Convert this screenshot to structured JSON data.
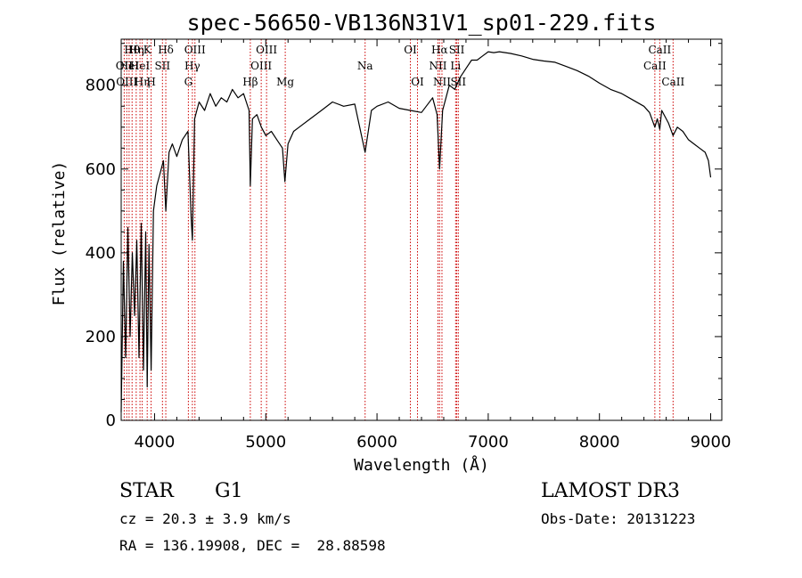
{
  "chart_data": {
    "type": "line",
    "title": "spec-56650-VB136N31V1_sp01-229.fits",
    "xlabel": "Wavelength (Å)",
    "ylabel": "Flux (relative)",
    "xlim": [
      3700,
      9100
    ],
    "ylim": [
      0,
      910
    ],
    "x_ticks": [
      4000,
      5000,
      6000,
      7000,
      8000,
      9000
    ],
    "x_tick_labels": [
      "4000",
      "5000",
      "6000",
      "7000",
      "8000",
      "9000"
    ],
    "y_ticks": [
      0,
      200,
      400,
      600,
      800
    ],
    "y_tick_labels": [
      "0",
      "200",
      "400",
      "600",
      "800"
    ],
    "grid": false,
    "line_color": "#000000",
    "marker_color": "#cc0000",
    "series": [
      {
        "name": "flux",
        "x": [
          3700,
          3720,
          3740,
          3760,
          3780,
          3800,
          3820,
          3840,
          3860,
          3880,
          3900,
          3920,
          3934,
          3950,
          3969,
          3990,
          4020,
          4050,
          4080,
          4101,
          4130,
          4160,
          4200,
          4250,
          4300,
          4330,
          4340,
          4360,
          4400,
          4450,
          4500,
          4550,
          4600,
          4650,
          4700,
          4750,
          4800,
          4850,
          4861,
          4880,
          4920,
          4960,
          5000,
          5050,
          5100,
          5150,
          5172,
          5200,
          5250,
          5300,
          5400,
          5500,
          5600,
          5700,
          5800,
          5893,
          5950,
          6000,
          6100,
          6200,
          6300,
          6400,
          6500,
          6540,
          6563,
          6590,
          6650,
          6700,
          6750,
          6800,
          6850,
          6900,
          6950,
          7000,
          7050,
          7100,
          7200,
          7300,
          7400,
          7500,
          7600,
          7700,
          7800,
          7900,
          8000,
          8100,
          8200,
          8300,
          8400,
          8450,
          8498,
          8520,
          8542,
          8560,
          8600,
          8620,
          8662,
          8700,
          8750,
          8800,
          8850,
          8900,
          8950,
          8980,
          9000
        ],
        "y": [
          20,
          380,
          150,
          460,
          200,
          400,
          250,
          430,
          150,
          470,
          120,
          450,
          80,
          420,
          120,
          500,
          560,
          590,
          620,
          500,
          640,
          660,
          630,
          670,
          690,
          480,
          430,
          720,
          760,
          740,
          780,
          750,
          770,
          760,
          790,
          770,
          780,
          740,
          560,
          720,
          730,
          700,
          680,
          690,
          670,
          650,
          570,
          660,
          690,
          700,
          720,
          740,
          760,
          750,
          755,
          640,
          740,
          750,
          760,
          745,
          740,
          735,
          770,
          730,
          600,
          740,
          800,
          790,
          820,
          840,
          860,
          860,
          870,
          880,
          878,
          880,
          876,
          870,
          862,
          858,
          855,
          845,
          835,
          822,
          805,
          790,
          780,
          765,
          750,
          735,
          700,
          720,
          695,
          740,
          720,
          710,
          680,
          700,
          690,
          670,
          660,
          650,
          640,
          620,
          580
        ]
      }
    ],
    "line_markers": [
      {
        "wavelength": 3727,
        "row": 2,
        "label": "OII"
      },
      {
        "wavelength": 3750,
        "row": 3,
        "label": "OIII"
      },
      {
        "wavelength": 3771,
        "row": 2,
        "label": "HeI"
      },
      {
        "wavelength": 3798,
        "row": 1,
        "label": "Hθ"
      },
      {
        "wavelength": 3835,
        "row": 1,
        "label": "Hη"
      },
      {
        "wavelength": 3869,
        "row": 2,
        "label": "HeI"
      },
      {
        "wavelength": 3889,
        "row": 3,
        "label": "Hη"
      },
      {
        "wavelength": 3934,
        "row": 1,
        "label": "K"
      },
      {
        "wavelength": 3969,
        "row": 3,
        "label": "H"
      },
      {
        "wavelength": 4071,
        "row": 2,
        "label": "SII"
      },
      {
        "wavelength": 4101,
        "row": 1,
        "label": "Hδ"
      },
      {
        "wavelength": 4304,
        "row": 3,
        "label": "G"
      },
      {
        "wavelength": 4340,
        "row": 2,
        "label": "Hγ"
      },
      {
        "wavelength": 4363,
        "row": 1,
        "label": "OIII"
      },
      {
        "wavelength": 4861,
        "row": 3,
        "label": "Hβ"
      },
      {
        "wavelength": 4959,
        "row": 2,
        "label": "OIII"
      },
      {
        "wavelength": 5007,
        "row": 1,
        "label": "OIII"
      },
      {
        "wavelength": 5175,
        "row": 3,
        "label": "Mg"
      },
      {
        "wavelength": 5893,
        "row": 2,
        "label": "Na"
      },
      {
        "wavelength": 6300,
        "row": 1,
        "label": "OI"
      },
      {
        "wavelength": 6364,
        "row": 3,
        "label": "OI"
      },
      {
        "wavelength": 6548,
        "row": 2,
        "label": "NII"
      },
      {
        "wavelength": 6563,
        "row": 1,
        "label": "Hα"
      },
      {
        "wavelength": 6584,
        "row": 3,
        "label": "NII"
      },
      {
        "wavelength": 6707,
        "row": 2,
        "label": "Li"
      },
      {
        "wavelength": 6717,
        "row": 1,
        "label": "SII"
      },
      {
        "wavelength": 6731,
        "row": 3,
        "label": "SII"
      },
      {
        "wavelength": 8498,
        "row": 2,
        "label": "CaII"
      },
      {
        "wavelength": 8542,
        "row": 1,
        "label": "CaII"
      },
      {
        "wavelength": 8662,
        "row": 3,
        "label": "CaII"
      }
    ]
  },
  "info": {
    "object_class": "STAR",
    "subclass": "G1",
    "survey": "LAMOST DR3",
    "redshift_text": "cz = 20.3 ± 3.9 km/s",
    "obs_date_text": "Obs-Date: 20131223",
    "coords_text": "RA = 136.19908, DEC =  28.88598"
  }
}
